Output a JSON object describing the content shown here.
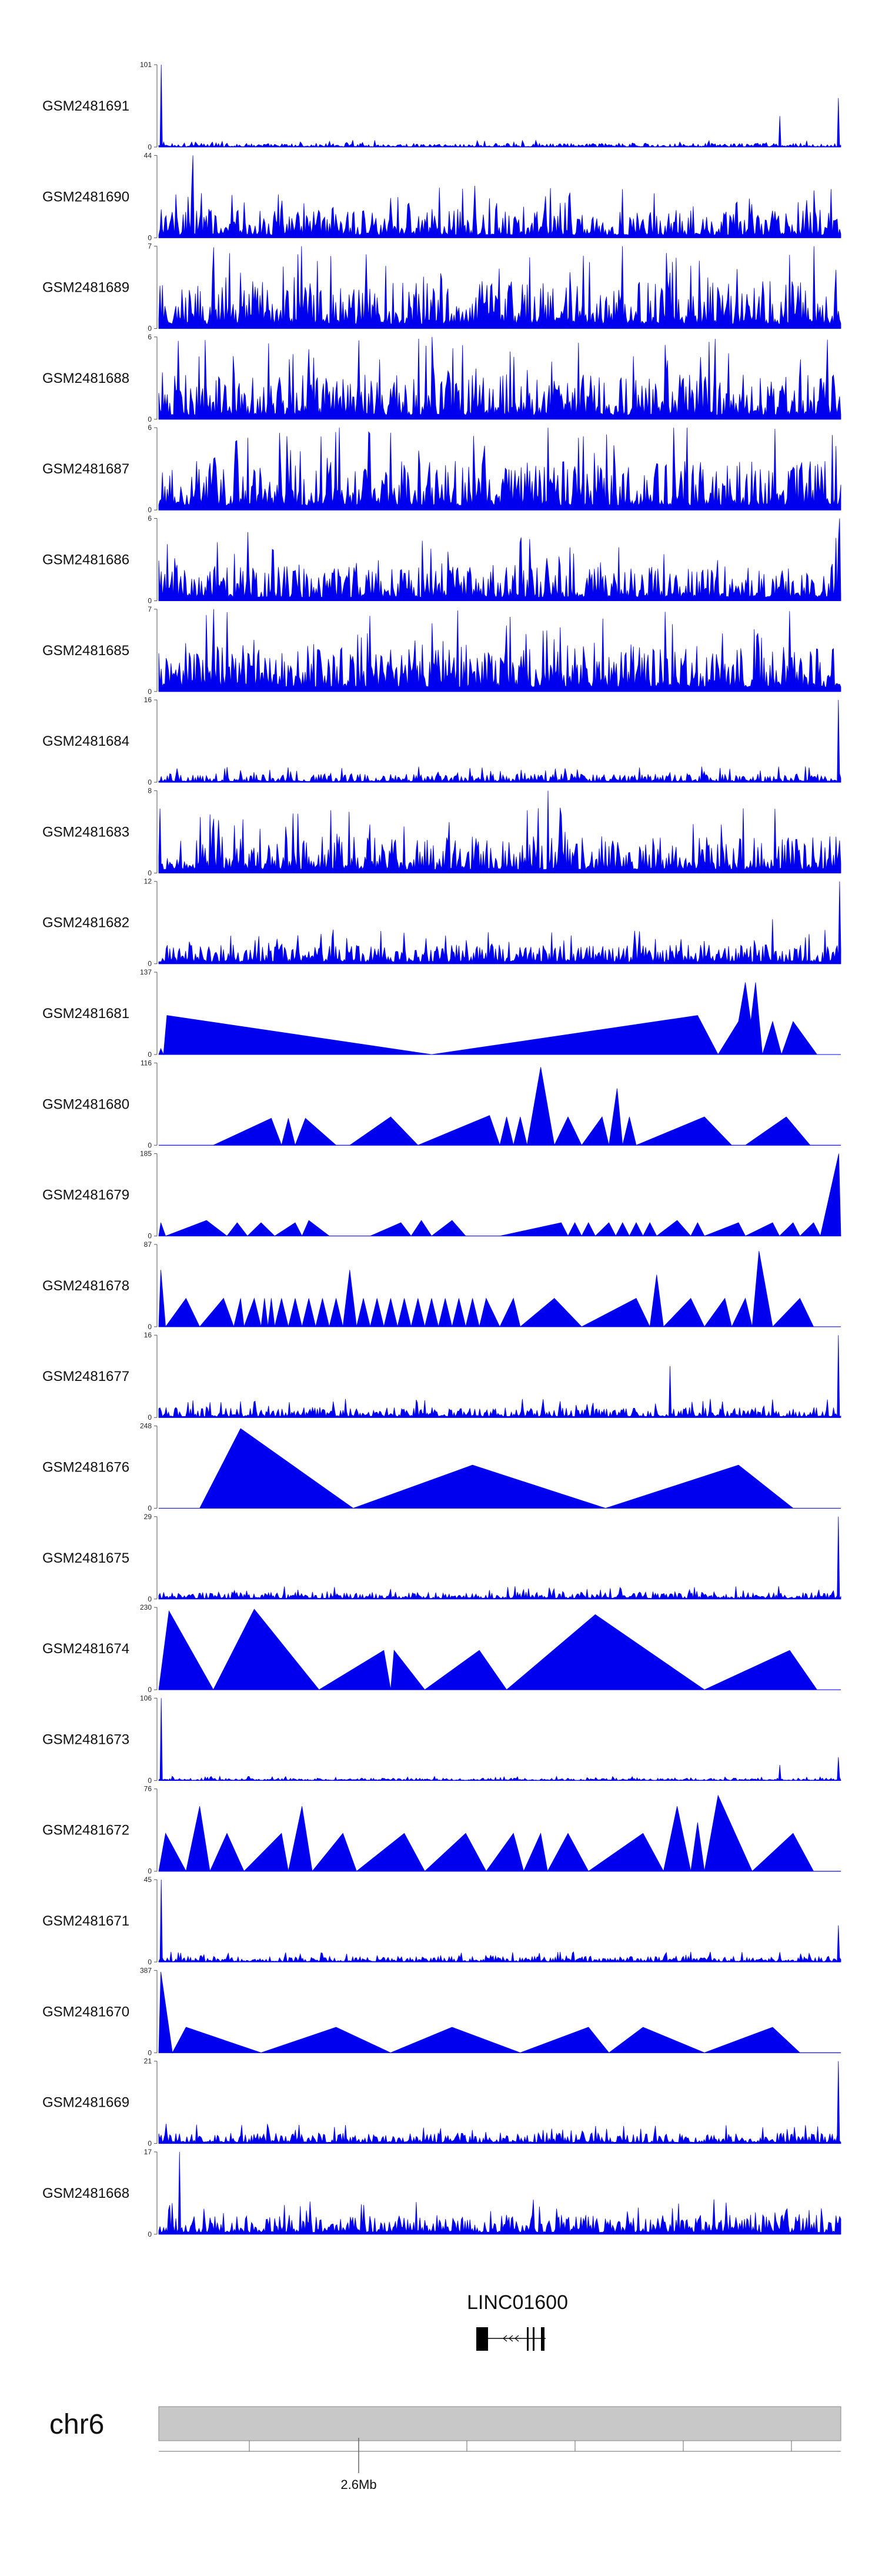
{
  "chart_data": {
    "type": "area",
    "colors": {
      "signal": "#0000ee",
      "axis": "#555555",
      "ideogram": "#c8c8c8",
      "gene": "#000000"
    },
    "tracks": [
      {
        "name": "GSM2481691",
        "ymax": "101",
        "ymin": "0",
        "style": "dense",
        "max": 101,
        "base": 3,
        "peaks": [
          [
            0.003,
            101
          ],
          [
            0.91,
            38
          ],
          [
            0.997,
            60
          ]
        ]
      },
      {
        "name": "GSM2481690",
        "ymax": "44",
        "ymin": "0",
        "style": "dense",
        "max": 44,
        "base": 10,
        "peaks": [
          [
            0.05,
            44
          ],
          [
            0.68,
            26
          ]
        ]
      },
      {
        "name": "GSM2481689",
        "ymax": "7",
        "ymin": "0",
        "style": "dense",
        "max": 7,
        "base": 2.6,
        "peaks": [
          [
            0.68,
            7
          ]
        ]
      },
      {
        "name": "GSM2481688",
        "ymax": "6",
        "ymin": "0",
        "style": "dense",
        "max": 6,
        "base": 2.1,
        "peaks": [
          [
            0.4,
            6
          ]
        ]
      },
      {
        "name": "GSM2481687",
        "ymax": "6",
        "ymin": "0",
        "style": "dense",
        "max": 6,
        "base": 2.3,
        "peaks": [
          [
            0.57,
            6
          ]
        ]
      },
      {
        "name": "GSM2481686",
        "ymax": "6",
        "ymin": "0",
        "style": "dense",
        "max": 6,
        "base": 1.7,
        "peaks": [
          [
            0.13,
            5
          ],
          [
            0.998,
            6
          ]
        ]
      },
      {
        "name": "GSM2481685",
        "ymax": "7",
        "ymin": "0",
        "style": "dense",
        "max": 7,
        "base": 2.6,
        "peaks": [
          [
            0.07,
            6.5
          ]
        ]
      },
      {
        "name": "GSM2481684",
        "ymax": "16",
        "ymin": "0",
        "style": "dense",
        "max": 16,
        "base": 1.1,
        "peaks": [
          [
            0.997,
            16
          ]
        ]
      },
      {
        "name": "GSM2481683",
        "ymax": "8",
        "ymin": "0",
        "style": "dense",
        "max": 8,
        "base": 2.3,
        "peaks": [
          [
            0.57,
            8
          ]
        ]
      },
      {
        "name": "GSM2481682",
        "ymax": "12",
        "ymin": "0",
        "style": "dense",
        "max": 12,
        "base": 1.8,
        "peaks": [
          [
            0.998,
            12
          ],
          [
            0.9,
            6.5
          ]
        ]
      },
      {
        "name": "GSM2481681",
        "ymax": "137",
        "ymin": "0",
        "style": "tri",
        "max": 137,
        "points": [
          [
            0.0,
            0
          ],
          [
            0.003,
            10
          ],
          [
            0.007,
            0
          ],
          [
            0.012,
            65
          ],
          [
            0.4,
            0
          ],
          [
            0.79,
            65
          ],
          [
            0.82,
            0
          ],
          [
            0.85,
            55
          ],
          [
            0.86,
            120
          ],
          [
            0.868,
            55
          ],
          [
            0.875,
            120
          ],
          [
            0.885,
            0
          ],
          [
            0.9,
            55
          ],
          [
            0.913,
            0
          ],
          [
            0.93,
            55
          ],
          [
            0.965,
            0
          ],
          [
            1.0,
            0
          ]
        ]
      },
      {
        "name": "GSM2481680",
        "ymax": "116",
        "ymin": "0",
        "style": "tri",
        "max": 116,
        "points": [
          [
            0.0,
            0
          ],
          [
            0.08,
            0
          ],
          [
            0.165,
            38
          ],
          [
            0.18,
            0
          ],
          [
            0.19,
            38
          ],
          [
            0.2,
            0
          ],
          [
            0.215,
            38
          ],
          [
            0.26,
            0
          ],
          [
            0.28,
            0
          ],
          [
            0.34,
            40
          ],
          [
            0.38,
            0
          ],
          [
            0.485,
            42
          ],
          [
            0.5,
            0
          ],
          [
            0.51,
            40
          ],
          [
            0.52,
            0
          ],
          [
            0.53,
            40
          ],
          [
            0.54,
            0
          ],
          [
            0.56,
            110
          ],
          [
            0.58,
            0
          ],
          [
            0.6,
            40
          ],
          [
            0.62,
            0
          ],
          [
            0.65,
            40
          ],
          [
            0.66,
            0
          ],
          [
            0.672,
            80
          ],
          [
            0.68,
            0
          ],
          [
            0.69,
            40
          ],
          [
            0.7,
            0
          ],
          [
            0.8,
            40
          ],
          [
            0.84,
            0
          ],
          [
            0.86,
            0
          ],
          [
            0.92,
            40
          ],
          [
            0.955,
            0
          ],
          [
            1.0,
            0
          ]
        ]
      },
      {
        "name": "GSM2481679",
        "ymax": "185",
        "ymin": "0",
        "style": "tri",
        "max": 185,
        "points": [
          [
            0.0,
            0
          ],
          [
            0.003,
            30
          ],
          [
            0.01,
            0
          ],
          [
            0.07,
            35
          ],
          [
            0.1,
            0
          ],
          [
            0.115,
            30
          ],
          [
            0.13,
            0
          ],
          [
            0.15,
            30
          ],
          [
            0.17,
            0
          ],
          [
            0.2,
            30
          ],
          [
            0.21,
            0
          ],
          [
            0.22,
            35
          ],
          [
            0.25,
            0
          ],
          [
            0.31,
            0
          ],
          [
            0.355,
            30
          ],
          [
            0.37,
            0
          ],
          [
            0.385,
            35
          ],
          [
            0.4,
            0
          ],
          [
            0.43,
            35
          ],
          [
            0.45,
            0
          ],
          [
            0.5,
            0
          ],
          [
            0.59,
            30
          ],
          [
            0.6,
            0
          ],
          [
            0.61,
            30
          ],
          [
            0.62,
            0
          ],
          [
            0.63,
            30
          ],
          [
            0.64,
            0
          ],
          [
            0.66,
            30
          ],
          [
            0.67,
            0
          ],
          [
            0.68,
            30
          ],
          [
            0.69,
            0
          ],
          [
            0.7,
            30
          ],
          [
            0.71,
            0
          ],
          [
            0.72,
            30
          ],
          [
            0.73,
            0
          ],
          [
            0.76,
            35
          ],
          [
            0.78,
            0
          ],
          [
            0.79,
            30
          ],
          [
            0.8,
            0
          ],
          [
            0.85,
            30
          ],
          [
            0.86,
            0
          ],
          [
            0.9,
            30
          ],
          [
            0.91,
            0
          ],
          [
            0.93,
            30
          ],
          [
            0.94,
            0
          ],
          [
            0.96,
            30
          ],
          [
            0.97,
            0
          ],
          [
            0.997,
            185
          ],
          [
            1.0,
            0
          ]
        ]
      },
      {
        "name": "GSM2481678",
        "ymax": "87",
        "ymin": "0",
        "style": "tri",
        "max": 87,
        "points": [
          [
            0.0,
            0
          ],
          [
            0.003,
            60
          ],
          [
            0.01,
            0
          ],
          [
            0.04,
            30
          ],
          [
            0.06,
            0
          ],
          [
            0.095,
            30
          ],
          [
            0.11,
            0
          ],
          [
            0.12,
            30
          ],
          [
            0.125,
            0
          ],
          [
            0.14,
            30
          ],
          [
            0.15,
            0
          ],
          [
            0.155,
            30
          ],
          [
            0.16,
            0
          ],
          [
            0.165,
            30
          ],
          [
            0.17,
            0
          ],
          [
            0.18,
            30
          ],
          [
            0.19,
            0
          ],
          [
            0.2,
            30
          ],
          [
            0.21,
            0
          ],
          [
            0.22,
            30
          ],
          [
            0.23,
            0
          ],
          [
            0.24,
            30
          ],
          [
            0.25,
            0
          ],
          [
            0.26,
            30
          ],
          [
            0.27,
            0
          ],
          [
            0.28,
            60
          ],
          [
            0.29,
            0
          ],
          [
            0.3,
            30
          ],
          [
            0.31,
            0
          ],
          [
            0.32,
            30
          ],
          [
            0.33,
            0
          ],
          [
            0.34,
            30
          ],
          [
            0.35,
            0
          ],
          [
            0.36,
            30
          ],
          [
            0.37,
            0
          ],
          [
            0.38,
            30
          ],
          [
            0.39,
            0
          ],
          [
            0.4,
            30
          ],
          [
            0.41,
            0
          ],
          [
            0.42,
            30
          ],
          [
            0.43,
            0
          ],
          [
            0.44,
            30
          ],
          [
            0.45,
            0
          ],
          [
            0.46,
            30
          ],
          [
            0.47,
            0
          ],
          [
            0.48,
            30
          ],
          [
            0.5,
            0
          ],
          [
            0.52,
            30
          ],
          [
            0.53,
            0
          ],
          [
            0.58,
            30
          ],
          [
            0.62,
            0
          ],
          [
            0.7,
            30
          ],
          [
            0.72,
            0
          ],
          [
            0.73,
            55
          ],
          [
            0.74,
            0
          ],
          [
            0.78,
            30
          ],
          [
            0.8,
            0
          ],
          [
            0.83,
            30
          ],
          [
            0.84,
            0
          ],
          [
            0.86,
            30
          ],
          [
            0.87,
            0
          ],
          [
            0.88,
            80
          ],
          [
            0.9,
            0
          ],
          [
            0.94,
            30
          ],
          [
            0.96,
            0
          ],
          [
            1.0,
            0
          ]
        ]
      },
      {
        "name": "GSM2481677",
        "ymax": "16",
        "ymin": "0",
        "style": "dense",
        "max": 16,
        "base": 1.3,
        "peaks": [
          [
            0.997,
            16
          ],
          [
            0.75,
            10
          ]
        ]
      },
      {
        "name": "GSM2481676",
        "ymax": "248",
        "ymin": "0",
        "style": "tri",
        "max": 248,
        "points": [
          [
            0.0,
            0
          ],
          [
            0.06,
            0
          ],
          [
            0.12,
            240
          ],
          [
            0.285,
            0
          ],
          [
            0.46,
            130
          ],
          [
            0.655,
            0
          ],
          [
            0.85,
            130
          ],
          [
            0.93,
            0
          ],
          [
            1.0,
            0
          ]
        ]
      },
      {
        "name": "GSM2481675",
        "ymax": "29",
        "ymin": "0",
        "style": "dense",
        "max": 29,
        "base": 1.6,
        "peaks": [
          [
            0.997,
            29
          ]
        ]
      },
      {
        "name": "GSM2481674",
        "ymax": "230",
        "ymin": "0",
        "style": "tri",
        "max": 230,
        "points": [
          [
            0.0,
            0
          ],
          [
            0.015,
            220
          ],
          [
            0.08,
            0
          ],
          [
            0.14,
            225
          ],
          [
            0.235,
            0
          ],
          [
            0.33,
            110
          ],
          [
            0.34,
            0
          ],
          [
            0.345,
            110
          ],
          [
            0.39,
            0
          ],
          [
            0.47,
            110
          ],
          [
            0.51,
            0
          ],
          [
            0.64,
            210
          ],
          [
            0.8,
            0
          ],
          [
            0.925,
            110
          ],
          [
            0.965,
            0
          ],
          [
            1.0,
            0
          ]
        ]
      },
      {
        "name": "GSM2481673",
        "ymax": "106",
        "ymin": "0",
        "style": "dense",
        "max": 106,
        "base": 2,
        "peaks": [
          [
            0.003,
            106
          ],
          [
            0.91,
            20
          ],
          [
            0.997,
            30
          ]
        ]
      },
      {
        "name": "GSM2481672",
        "ymax": "76",
        "ymin": "0",
        "style": "tri",
        "max": 76,
        "points": [
          [
            0.0,
            0
          ],
          [
            0.01,
            35
          ],
          [
            0.04,
            0
          ],
          [
            0.06,
            60
          ],
          [
            0.075,
            0
          ],
          [
            0.1,
            35
          ],
          [
            0.125,
            0
          ],
          [
            0.18,
            35
          ],
          [
            0.19,
            0
          ],
          [
            0.21,
            60
          ],
          [
            0.225,
            0
          ],
          [
            0.27,
            35
          ],
          [
            0.29,
            0
          ],
          [
            0.36,
            35
          ],
          [
            0.39,
            0
          ],
          [
            0.45,
            35
          ],
          [
            0.48,
            0
          ],
          [
            0.52,
            35
          ],
          [
            0.535,
            0
          ],
          [
            0.56,
            35
          ],
          [
            0.57,
            0
          ],
          [
            0.6,
            35
          ],
          [
            0.63,
            0
          ],
          [
            0.71,
            35
          ],
          [
            0.74,
            0
          ],
          [
            0.76,
            60
          ],
          [
            0.78,
            0
          ],
          [
            0.79,
            45
          ],
          [
            0.8,
            0
          ],
          [
            0.82,
            70
          ],
          [
            0.87,
            0
          ],
          [
            0.93,
            35
          ],
          [
            0.96,
            0
          ],
          [
            1.0,
            0
          ]
        ]
      },
      {
        "name": "GSM2481671",
        "ymax": "45",
        "ymin": "0",
        "style": "dense",
        "max": 45,
        "base": 2,
        "peaks": [
          [
            0.003,
            45
          ],
          [
            0.997,
            20
          ]
        ]
      },
      {
        "name": "GSM2481670",
        "ymax": "387",
        "ymin": "0",
        "style": "tri",
        "max": 387,
        "points": [
          [
            0.0,
            0
          ],
          [
            0.003,
            380
          ],
          [
            0.02,
            0
          ],
          [
            0.04,
            120
          ],
          [
            0.15,
            0
          ],
          [
            0.26,
            120
          ],
          [
            0.34,
            0
          ],
          [
            0.43,
            120
          ],
          [
            0.53,
            0
          ],
          [
            0.63,
            120
          ],
          [
            0.66,
            0
          ],
          [
            0.71,
            120
          ],
          [
            0.8,
            0
          ],
          [
            0.9,
            120
          ],
          [
            0.94,
            0
          ],
          [
            1.0,
            0
          ]
        ]
      },
      {
        "name": "GSM2481669",
        "ymax": "21",
        "ymin": "0",
        "style": "dense",
        "max": 21,
        "base": 1.8,
        "peaks": [
          [
            0.997,
            21
          ]
        ]
      },
      {
        "name": "GSM2481668",
        "ymax": "17",
        "ymin": "0",
        "style": "dense",
        "max": 17,
        "base": 2.6,
        "peaks": [
          [
            0.03,
            17
          ]
        ]
      }
    ],
    "gene": {
      "name": "LINC01600",
      "strand": "-"
    },
    "chromosome": {
      "name": "chr6",
      "tick_label": "2.6Mb"
    }
  }
}
